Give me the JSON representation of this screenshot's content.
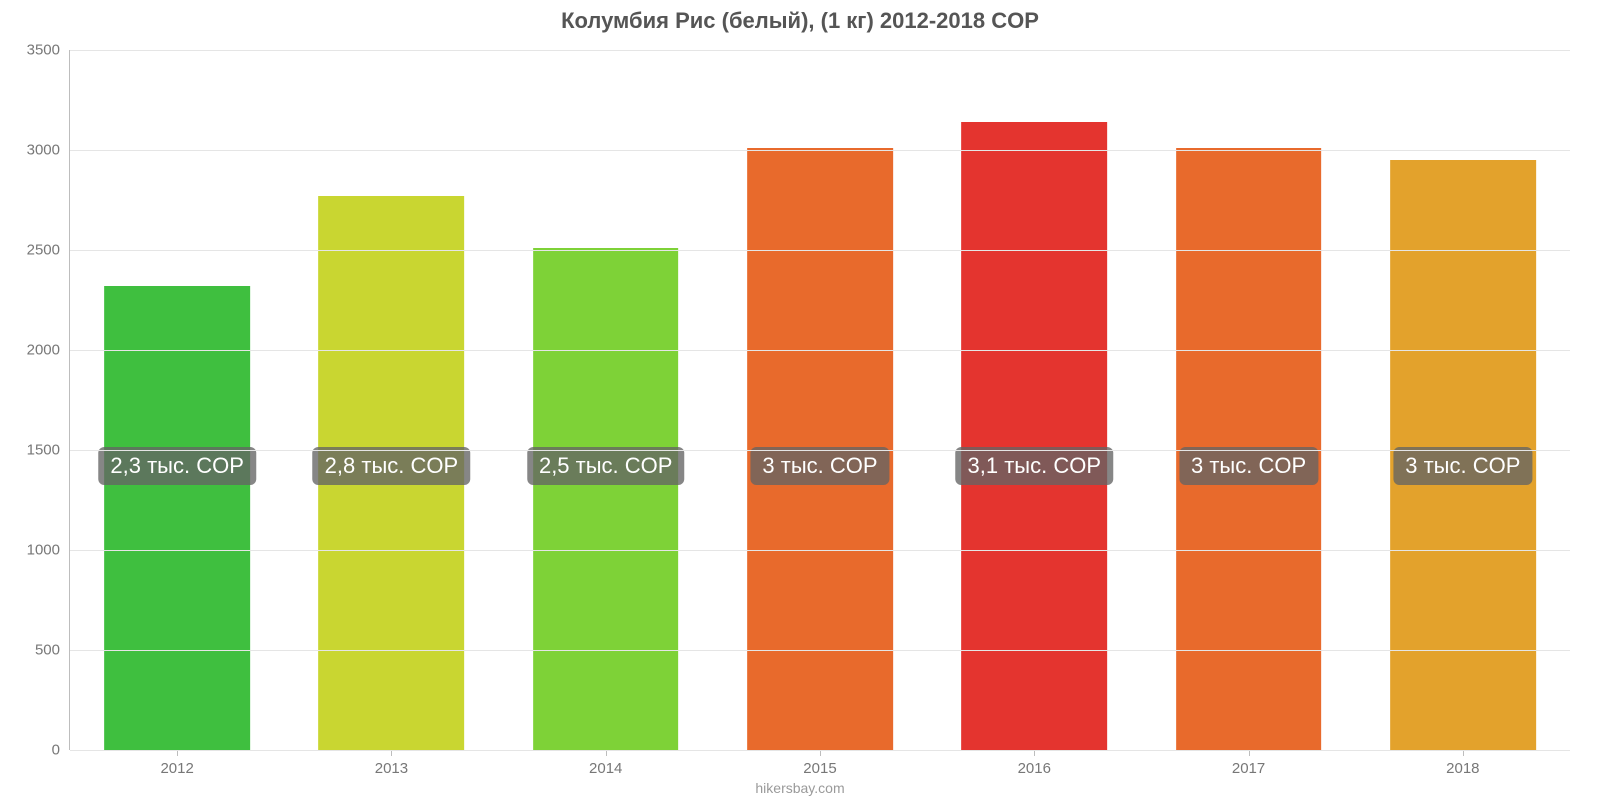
{
  "chart": {
    "type": "bar",
    "title": "Колумбия Рис (белый), (1 кг) 2012-2018 COP",
    "title_fontsize": 22,
    "title_color": "#555555",
    "background_color": "#ffffff",
    "grid_color": "#e5e5e5",
    "axis_color": "#bdbdbd",
    "tick_label_color": "#777777",
    "tick_label_fontsize": 15,
    "ylim": [
      0,
      3500
    ],
    "ytick_step": 500,
    "yticks": [
      "0",
      "500",
      "1000",
      "1500",
      "2000",
      "2500",
      "3000",
      "3500"
    ],
    "bar_width_ratio": 0.68,
    "bar_label_fontsize": 22,
    "bar_label_bg": "rgba(100,100,100,0.78)",
    "bar_label_color": "#ffffff",
    "bar_label_y_value": 1420,
    "categories": [
      "2012",
      "2013",
      "2014",
      "2015",
      "2016",
      "2017",
      "2018"
    ],
    "values": [
      2320,
      2770,
      2510,
      3010,
      3140,
      3010,
      2950
    ],
    "bar_colors": [
      "#3fbf3f",
      "#c9d631",
      "#7ed237",
      "#e86a2c",
      "#e4342f",
      "#e86a2c",
      "#e3a22c"
    ],
    "bar_labels": [
      "2,3 тыс. COP",
      "2,8 тыс. COP",
      "2,5 тыс. COP",
      "3 тыс. COP",
      "3,1 тыс. COP",
      "3 тыс. COP",
      "3 тыс. COP"
    ],
    "source_text": "hikersbay.com",
    "source_color": "#9a9a9a",
    "source_fontsize": 14
  }
}
